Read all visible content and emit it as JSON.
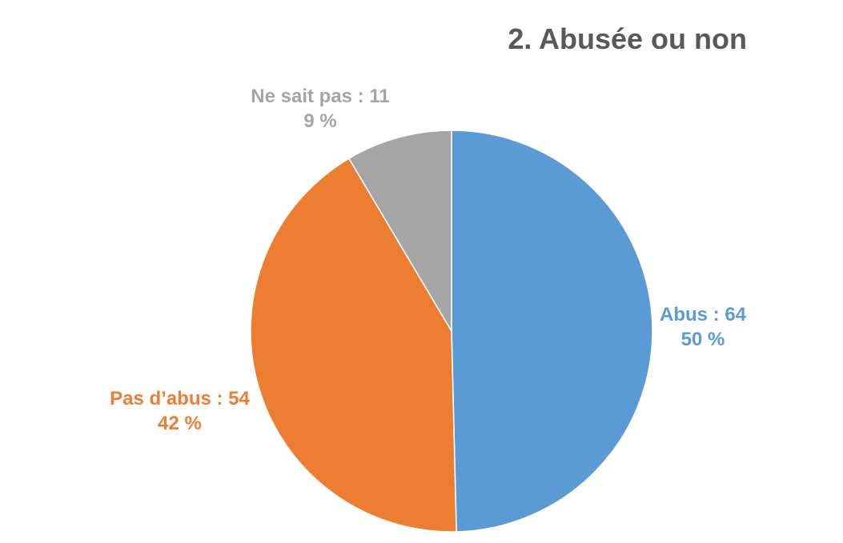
{
  "chart_data": {
    "type": "pie",
    "title": "2. Abusée ou non",
    "slices": [
      {
        "name": "Abus",
        "value": 64,
        "percent_label": "50 %",
        "label": "Abus : 64",
        "color": "#5B9BD5"
      },
      {
        "name": "Pas d’abus",
        "value": 54,
        "percent_label": "42 %",
        "label": "Pas d’abus : 54",
        "color": "#ED7D31"
      },
      {
        "name": "Ne sait pas",
        "value": 11,
        "percent_label": "9 %",
        "label": "Ne sait pas : 11",
        "color": "#A5A5A5"
      }
    ],
    "start_angle": "12 o'clock",
    "direction": "clockwise",
    "legend": "none"
  }
}
